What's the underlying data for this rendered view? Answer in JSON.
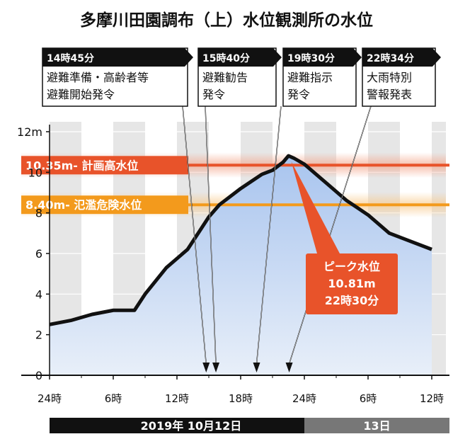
{
  "chart_data": {
    "type": "area",
    "title": "多摩川田園調布（上）水位観測所の水位",
    "y_unit_label": "12m",
    "ylim": [
      0,
      12
    ],
    "yticks": [
      {
        "value": 0,
        "label": "0"
      },
      {
        "value": 2,
        "label": "2"
      },
      {
        "value": 4,
        "label": "4"
      },
      {
        "value": 6,
        "label": "6"
      },
      {
        "value": 8,
        "label": "8"
      },
      {
        "value": 10,
        "label": "10"
      },
      {
        "value": 12,
        "label": "12m"
      }
    ],
    "xlim": [
      0,
      36
    ],
    "xticks": [
      {
        "value": 0,
        "label": "24時"
      },
      {
        "value": 6,
        "label": "6時"
      },
      {
        "value": 12,
        "label": "12時"
      },
      {
        "value": 18,
        "label": "18時"
      },
      {
        "value": 24,
        "label": "24時"
      },
      {
        "value": 30,
        "label": "6時"
      },
      {
        "value": 36,
        "label": "12時"
      }
    ],
    "grid": true,
    "series": [
      {
        "x": [
          0,
          2,
          4,
          6,
          8,
          9,
          11,
          13,
          14,
          15,
          16,
          18,
          20,
          21,
          22,
          22.5,
          23,
          24,
          26,
          28,
          30,
          32,
          34,
          36
        ],
        "y": [
          2.5,
          2.7,
          3.0,
          3.2,
          3.2,
          4.0,
          5.3,
          6.2,
          7.0,
          7.8,
          8.4,
          9.2,
          9.9,
          10.1,
          10.5,
          10.81,
          10.7,
          10.4,
          9.5,
          8.6,
          7.9,
          7.0,
          6.6,
          6.2
        ]
      }
    ],
    "reference_lines": [
      {
        "value": 10.35,
        "label": "10.35m- 計画高水位",
        "color": "#e8532a"
      },
      {
        "value": 8.4,
        "label": "8.40m- 氾濫危険水位",
        "color": "#f39a1c"
      }
    ],
    "events": [
      {
        "x": 14.75,
        "time": "14時45分",
        "lines": [
          "避難準備・高齢者等",
          "避難開始発令"
        ]
      },
      {
        "x": 15.67,
        "time": "15時40分",
        "lines": [
          "避難勧告",
          "発令"
        ]
      },
      {
        "x": 19.5,
        "time": "19時30分",
        "lines": [
          "避難指示",
          "発令"
        ]
      },
      {
        "x": 22.57,
        "time": "22時34分",
        "lines": [
          "大雨特別",
          "警報発表"
        ]
      }
    ],
    "peak": {
      "x": 22.5,
      "y": 10.81,
      "lines": [
        "ピーク水位",
        "10.81m",
        "22時30分"
      ]
    },
    "date_bands": [
      {
        "from": 0,
        "to": 24,
        "label": "2019年 10月12日",
        "color": "#111111"
      },
      {
        "from": 24,
        "to": 36,
        "label": "13日",
        "color": "#777777"
      }
    ],
    "colors": {
      "area_top": "#a8c4ee",
      "area_bottom": "#e6eefa",
      "line": "#111111",
      "shade_band": "#e6e6e6",
      "peak_box": "#e8532a"
    }
  }
}
